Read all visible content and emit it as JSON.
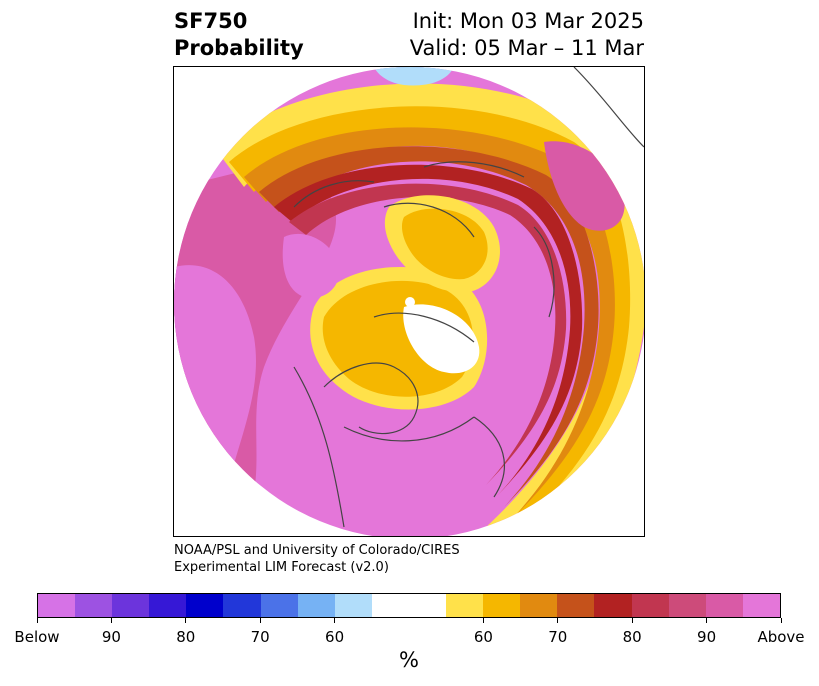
{
  "title": {
    "left_line1": "SF750",
    "left_line2": "Probability",
    "right_line1": "Init: Mon 03 Mar 2025",
    "right_line2": "Valid: 05 Mar – 11 Mar"
  },
  "credit": {
    "line1": "NOAA/PSL and University of Colorado/CIRES",
    "line2": "Experimental LIM Forecast (v2.0)"
  },
  "colorbar": {
    "units": "%",
    "colors": [
      "#d672e6",
      "#9d52e2",
      "#6c34dc",
      "#3618d6",
      "#0000cc",
      "#2237d9",
      "#4b72e8",
      "#76b2f4",
      "#b1ddfa",
      "#ffffff",
      "#ffe14a",
      "#f5b700",
      "#e18a10",
      "#c5521b",
      "#b22222",
      "#c13650",
      "#cd4b7a",
      "#d95aa6",
      "#e476d9"
    ],
    "tick_labels": [
      "Below",
      "90",
      "80",
      "70",
      "60",
      "60",
      "70",
      "80",
      "90",
      "Above"
    ]
  },
  "map": {
    "palette": {
      "above": "#e476d9",
      "p90": "#d95aa6",
      "p85": "#cd4b7a",
      "p80": "#c13650",
      "p75": "#b22222",
      "p70": "#c5521b",
      "p65": "#e18a10",
      "p60": "#f5b700",
      "p55": "#ffe14a",
      "neutral": "#ffffff",
      "below_light": "#76b2f4",
      "below_lighter": "#b1ddfa",
      "land_line": "#444444"
    }
  }
}
